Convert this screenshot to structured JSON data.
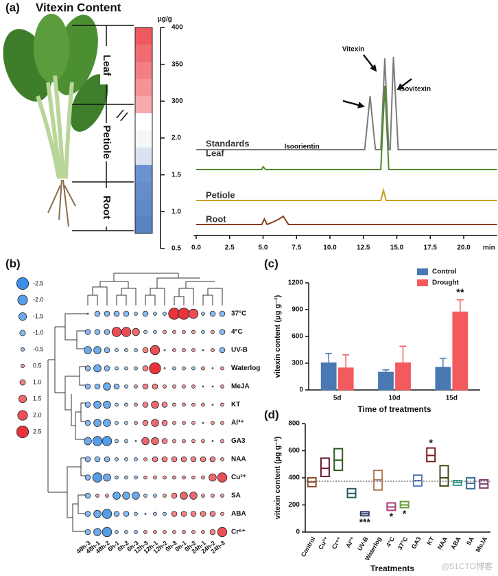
{
  "chart_data": [
    {
      "type": "colorbar",
      "panel": "(a)",
      "title": "Vitexin Content",
      "unit": "µg/g",
      "regions": [
        "Leaf",
        "Petiole",
        "Root"
      ],
      "colors": [
        "#ef5a60",
        "#f16c72",
        "#f37f84",
        "#f59397",
        "#f7a9ac",
        "#ffffff",
        "#f6f7fb",
        "#dbe3f1",
        "#6d92d0",
        "#678ccc",
        "#6188c8",
        "#5b83c4"
      ],
      "yticks": [
        400,
        350,
        300,
        {
          "value": 2,
          "label": "2.0"
        },
        1.5,
        {
          "value": 1,
          "label": "1.0"
        },
        0.5
      ]
    },
    {
      "type": "line",
      "xlabel": "min",
      "xlim": [
        0,
        22.5
      ],
      "ylim": [
        0,
        140
      ],
      "xticks": [
        {
          "value": 0,
          "label": "0.0"
        },
        2.5,
        {
          "value": 5,
          "label": "5.0"
        },
        7.5,
        {
          "value": 10,
          "label": "10.0"
        },
        12.5,
        {
          "value": 15,
          "label": "15.0"
        },
        17.5,
        {
          "value": 20,
          "label": "20.0"
        }
      ],
      "compounds": [
        "Vitexin",
        "Isovitexin",
        "Isoorientin"
      ],
      "series": [
        {
          "name": "Standards",
          "color": "#7a7a7a",
          "x": [
            0,
            12.6,
            13.0,
            13.4,
            13.8,
            14.1,
            14.4,
            14.5,
            14.75,
            15.1,
            22.5
          ],
          "values": [
            0,
            0,
            78,
            0,
            0,
            133,
            0,
            0,
            135,
            0,
            0
          ]
        },
        {
          "name": "Leaf",
          "color": "#4f8a2b",
          "x": [
            0,
            4.9,
            5.0,
            5.2,
            13.8,
            14.1,
            14.4,
            22.5
          ],
          "values": [
            0,
            0,
            4,
            0,
            0,
            122,
            0,
            0
          ]
        },
        {
          "name": "Petiole",
          "color": "#c9a21a",
          "x": [
            0,
            13.8,
            14.0,
            14.2,
            22.5
          ],
          "values": [
            0,
            0,
            15,
            0,
            0
          ]
        },
        {
          "name": "Root",
          "color": "#8b3a1a",
          "x": [
            0,
            4.9,
            5.1,
            5.3,
            5.9,
            6.2,
            6.5,
            6.9,
            22.5
          ],
          "values": [
            0,
            0,
            8,
            0,
            5,
            8,
            12,
            0,
            0
          ]
        }
      ]
    },
    {
      "type": "bubble",
      "panel": "(b)",
      "columns": [
        "48h-3",
        "48h-1",
        "48h-2",
        "6h-1",
        "6h-2",
        "6h-3",
        "12h-3",
        "12h-1",
        "12h-2",
        "0h-3",
        "0h-1",
        "0h-2",
        "24h-1",
        "24h-2",
        "24h-3"
      ],
      "rows": [
        "37°C",
        "4°C",
        "UV-B",
        "Waterlog",
        "MeJA",
        "KT",
        "Al³⁺",
        "GA3",
        "NAA",
        "Cu²⁺",
        "SA",
        "ABA",
        "Cr⁶⁺"
      ],
      "legend_values": [
        -2.5,
        {
          "value": -2,
          "label": "-2.0"
        },
        -1.5,
        {
          "value": -1,
          "label": "-1.0"
        },
        -0.5,
        0.5,
        {
          "value": 1,
          "label": "1.0"
        },
        1.5,
        {
          "value": 2,
          "label": "2.0"
        },
        2.5
      ],
      "negative_color": "#3a8ee6",
      "positive_color": "#e8333b",
      "values": [
        [
          0,
          -1,
          -1,
          -1,
          -1,
          -0.5,
          -1,
          -0.5,
          -0.5,
          2.5,
          2.5,
          2,
          -0.5,
          -1,
          -1
        ],
        [
          -1,
          -1,
          -1,
          2,
          2,
          1.5,
          -0.5,
          -0.5,
          0.5,
          0.5,
          0.5,
          0.5,
          -0.5,
          0.5,
          -1
        ],
        [
          -1.5,
          -1.5,
          -1,
          -0.5,
          -0.5,
          -0.5,
          1,
          2,
          0,
          0.5,
          0.5,
          0.5,
          0,
          0.5,
          -1
        ],
        [
          -1,
          -1.5,
          -1,
          -0.5,
          -0.5,
          -0.5,
          1,
          2.5,
          0,
          -0.5,
          -0.5,
          -0.5,
          0.5,
          0,
          0.5
        ],
        [
          -1,
          -1,
          -1.5,
          -1,
          -0.5,
          0.5,
          1,
          1,
          0.5,
          0.5,
          0.5,
          0.5,
          0,
          0,
          0.5
        ],
        [
          -1,
          -1.5,
          -1.5,
          -0.5,
          -0.5,
          0.5,
          1,
          1.5,
          1,
          0.5,
          0.5,
          0.5,
          0.5,
          0,
          0.5
        ],
        [
          -1,
          -1.5,
          -1.5,
          -0.5,
          -0.5,
          0.5,
          1,
          1.5,
          1,
          0.5,
          0.5,
          0.5,
          0,
          0.5,
          0.5
        ],
        [
          -1.5,
          -2,
          -2,
          -0.5,
          -0.5,
          0,
          1.5,
          1.5,
          1,
          0.5,
          0.5,
          0.5,
          0.5,
          0,
          0.5
        ],
        [
          -1,
          -1,
          -1,
          -0.5,
          -0.5,
          -0.5,
          0.5,
          1,
          1,
          1,
          1,
          1,
          1,
          1,
          0.5
        ],
        [
          -1,
          -2,
          -1.5,
          -0.5,
          -0.5,
          -0.5,
          0.5,
          0.5,
          0.5,
          0.5,
          0.5,
          0.5,
          0.5,
          1.5,
          2
        ],
        [
          -1,
          0.5,
          0.5,
          -1.5,
          -1.5,
          -1.5,
          -0.5,
          -0.5,
          0.5,
          1,
          1.5,
          1.5,
          0.5,
          0.5,
          0.5
        ],
        [
          -1,
          -1.5,
          -2,
          -1,
          -1,
          -0.5,
          0,
          -0.5,
          -0.5,
          1,
          1,
          1,
          1,
          1,
          0.5
        ],
        [
          -1,
          -1.5,
          -2,
          -0.5,
          -0.5,
          -0.5,
          0.5,
          0.5,
          0.5,
          0.5,
          0.5,
          0.5,
          0.5,
          1,
          2
        ]
      ]
    },
    {
      "type": "bar",
      "panel": "(c)",
      "ylabel": "vitexin content (μg g⁻¹)",
      "xlabel": "Time of treatments",
      "categories": [
        "5d",
        "10d",
        "15d"
      ],
      "ylim": [
        0,
        1200
      ],
      "yticks": [
        0,
        300,
        600,
        900,
        1200
      ],
      "legend": "top-right",
      "series": [
        {
          "name": "Control",
          "color": "#4a78b3",
          "values": [
            305,
            200,
            255
          ],
          "errors": [
            105,
            25,
            100
          ]
        },
        {
          "name": "Drought",
          "color": "#f25a5d",
          "values": [
            248,
            305,
            875
          ],
          "errors": [
            145,
            185,
            135
          ]
        }
      ],
      "annotations": [
        {
          "text": "**",
          "category": "15d",
          "series": "Drought"
        }
      ]
    },
    {
      "type": "floating_bar",
      "panel": "(d)",
      "ylabel": "vitexin content (μg g⁻¹)",
      "xlabel": "Treatments",
      "categories": [
        "Control",
        "Cu²⁺",
        "Cr⁶⁺",
        "Al³⁺",
        "UV-B",
        "Waterlog",
        "4°C",
        "37°C",
        "GA3",
        "KT",
        "NAA",
        "ABA",
        "SA",
        "MeJA"
      ],
      "colors": [
        "#8b4a2b",
        "#6b1a3a",
        "#2e5a1e",
        "#2a5a5a",
        "#2a3a6a",
        "#b07a5a",
        "#b03a7a",
        "#6a9a3a",
        "#5a7ab5",
        "#7a1a1a",
        "#3a4a1a",
        "#3a9a8a",
        "#3a6a9a",
        "#7a3a6a"
      ],
      "low": [
        335,
        410,
        455,
        255,
        120,
        310,
        160,
        180,
        340,
        520,
        340,
        345,
        320,
        325
      ],
      "high": [
        400,
        545,
        615,
        320,
        150,
        455,
        215,
        225,
        420,
        620,
        490,
        380,
        400,
        385
      ],
      "values": [
        370,
        470,
        530,
        285,
        135,
        385,
        185,
        200,
        380,
        565,
        400,
        365,
        360,
        355
      ],
      "reference_line": 375,
      "ylim": [
        0,
        800
      ],
      "yticks": [
        0,
        200,
        400,
        600,
        800
      ],
      "annotations": [
        {
          "text": "*",
          "category": "KT",
          "position": "above"
        },
        {
          "text": "***",
          "category": "UV-B",
          "position": "below"
        },
        {
          "text": "*",
          "category": "4°C",
          "position": "below"
        },
        {
          "text": "*",
          "category": "37°C",
          "position": "below"
        }
      ]
    }
  ],
  "watermark": "@51CTO博客"
}
